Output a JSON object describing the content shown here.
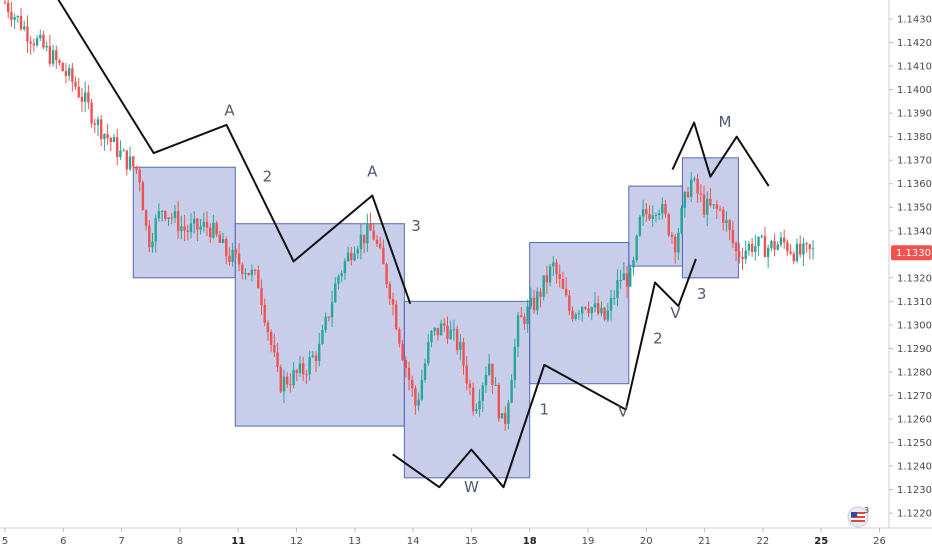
{
  "chart_data": {
    "type": "candlestick",
    "y_ticks": [
      "1.14300",
      "1.14200",
      "1.14100",
      "1.14000",
      "1.13900",
      "1.13800",
      "1.13700",
      "1.13600",
      "1.13500",
      "1.13400",
      "1.13200",
      "1.13100",
      "1.13000",
      "1.12900",
      "1.12800",
      "1.12700",
      "1.12600",
      "1.12500",
      "1.12400",
      "1.12300",
      "1.12200"
    ],
    "y_tick_values": [
      1.143,
      1.142,
      1.141,
      1.14,
      1.139,
      1.138,
      1.137,
      1.136,
      1.135,
      1.134,
      1.132,
      1.131,
      1.13,
      1.129,
      1.128,
      1.127,
      1.126,
      1.125,
      1.124,
      1.123,
      1.122
    ],
    "ylim": [
      1.2215,
      1.1437
    ],
    "x_ticks": [
      {
        "label": "5",
        "day": 5,
        "bold": false
      },
      {
        "label": "6",
        "day": 6,
        "bold": false
      },
      {
        "label": "7",
        "day": 7,
        "bold": false
      },
      {
        "label": "8",
        "day": 8,
        "bold": false
      },
      {
        "label": "11",
        "day": 9,
        "bold": true
      },
      {
        "label": "12",
        "day": 10,
        "bold": false
      },
      {
        "label": "13",
        "day": 11,
        "bold": false
      },
      {
        "label": "14",
        "day": 12,
        "bold": false
      },
      {
        "label": "15",
        "day": 13,
        "bold": false
      },
      {
        "label": "18",
        "day": 14,
        "bold": true
      },
      {
        "label": "19",
        "day": 15,
        "bold": false
      },
      {
        "label": "20",
        "day": 16,
        "bold": false
      },
      {
        "label": "21",
        "day": 17,
        "bold": false
      },
      {
        "label": "22",
        "day": 18,
        "bold": false
      },
      {
        "label": "25",
        "day": 19,
        "bold": true
      },
      {
        "label": "26",
        "day": 20,
        "bold": false
      }
    ],
    "current_price": {
      "label": "1.13307",
      "value": 1.13307,
      "color": "#ef5350"
    },
    "up_color": "#26a69a",
    "down_color": "#ef5350",
    "box_color": "#9aa6d8",
    "boxes": [
      {
        "x0": 7.2,
        "x1": 8.95,
        "y0": 1.1367,
        "y1": 1.132
      },
      {
        "x0": 8.95,
        "x1": 11.85,
        "y0": 1.1343,
        "y1": 1.1257
      },
      {
        "x0": 11.85,
        "x1": 14.0,
        "y0": 1.131,
        "y1": 1.1235
      },
      {
        "x0": 14.0,
        "x1": 15.7,
        "y0": 1.1335,
        "y1": 1.1275
      },
      {
        "x0": 15.7,
        "x1": 16.62,
        "y0": 1.1359,
        "y1": 1.1325
      },
      {
        "x0": 16.62,
        "x1": 17.58,
        "y0": 1.1371,
        "y1": 1.132
      }
    ],
    "wave_lines": [
      [
        [
          5.72,
          1.1446
        ],
        [
          7.55,
          1.1373
        ],
        [
          8.8,
          1.1385
        ],
        [
          9.95,
          1.1327
        ],
        [
          11.3,
          1.1355
        ],
        [
          11.95,
          1.1309
        ]
      ],
      [
        [
          11.65,
          1.1245
        ],
        [
          12.45,
          1.1231
        ],
        [
          13.0,
          1.1247
        ],
        [
          13.55,
          1.1231
        ],
        [
          14.25,
          1.1283
        ],
        [
          15.65,
          1.1264
        ],
        [
          16.15,
          1.1318
        ],
        [
          16.55,
          1.1308
        ],
        [
          16.85,
          1.1328
        ]
      ],
      [
        [
          16.45,
          1.1366
        ],
        [
          16.82,
          1.1386
        ],
        [
          17.1,
          1.1363
        ],
        [
          17.55,
          1.138
        ],
        [
          18.1,
          1.1359
        ]
      ]
    ],
    "wave_labels": [
      {
        "text": "A",
        "x": 8.85,
        "y": 1.1389
      },
      {
        "text": "2",
        "x": 9.5,
        "y": 1.1361
      },
      {
        "text": "A",
        "x": 11.3,
        "y": 1.1363
      },
      {
        "text": "3",
        "x": 12.05,
        "y": 1.134
      },
      {
        "text": "W",
        "x": 13.0,
        "y": 1.1229
      },
      {
        "text": "1",
        "x": 14.25,
        "y": 1.1262
      },
      {
        "text": "V",
        "x": 15.6,
        "y": 1.1261
      },
      {
        "text": "2",
        "x": 16.2,
        "y": 1.1292
      },
      {
        "text": "V",
        "x": 16.5,
        "y": 1.1303
      },
      {
        "text": "3",
        "x": 16.95,
        "y": 1.1311
      },
      {
        "text": "M",
        "x": 17.35,
        "y": 1.1384
      }
    ],
    "legend": "",
    "grid": true
  },
  "ui": {
    "badge_icon": "us-flag-icon",
    "badge_count": "3"
  }
}
